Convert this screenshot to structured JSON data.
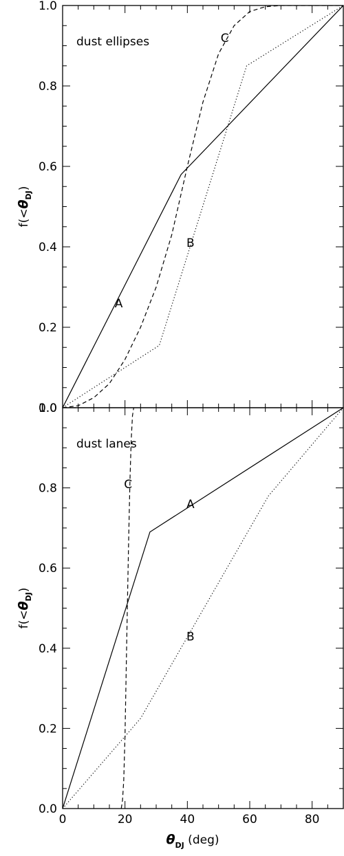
{
  "chart_data": [
    {
      "type": "line",
      "name": "top-panel",
      "panel_label": "dust ellipses",
      "xlim": [
        0,
        90
      ],
      "ylim": [
        0,
        1
      ],
      "xticks": [
        0,
        20,
        40,
        60,
        80
      ],
      "yticks": [
        0.0,
        0.2,
        0.4,
        0.6,
        0.8,
        1.0
      ],
      "ytick_labels": [
        "0.0",
        "0.2",
        "0.4",
        "0.6",
        "0.8",
        "1.0"
      ],
      "ylabel": {
        "prefix": "f(<",
        "symbol": "θ",
        "sub": "DJ",
        "suffix": ")"
      },
      "series": [
        {
          "name": "A",
          "style": "solid",
          "x": [
            0,
            38,
            90
          ],
          "y": [
            0,
            0.58,
            1.0
          ],
          "label_at": [
            18,
            0.26
          ]
        },
        {
          "name": "B",
          "style": "dotted",
          "x": [
            0,
            31,
            59,
            90
          ],
          "y": [
            0,
            0.155,
            0.85,
            1.0
          ],
          "label_at": [
            41,
            0.41
          ]
        },
        {
          "name": "C",
          "style": "dashed",
          "x": [
            0,
            5,
            10,
            15,
            20,
            25,
            30,
            35,
            40,
            45,
            50,
            55,
            60,
            65,
            70,
            75,
            80,
            90
          ],
          "y": [
            0,
            0.005,
            0.025,
            0.06,
            0.12,
            0.2,
            0.3,
            0.43,
            0.6,
            0.76,
            0.88,
            0.95,
            0.985,
            0.997,
            1.0,
            1.0,
            1.0,
            1.0
          ],
          "label_at": [
            52,
            0.92
          ]
        }
      ]
    },
    {
      "type": "line",
      "name": "bottom-panel",
      "panel_label": "dust lanes",
      "xlim": [
        0,
        90
      ],
      "ylim": [
        0,
        1
      ],
      "xticks": [
        0,
        20,
        40,
        60,
        80
      ],
      "xtick_labels": [
        "0",
        "20",
        "40",
        "60",
        "80"
      ],
      "yticks": [
        0.0,
        0.2,
        0.4,
        0.6,
        0.8,
        1.0
      ],
      "ytick_labels": [
        "0.0",
        "0.2",
        "0.4",
        "0.6",
        "0.8",
        "1.0"
      ],
      "ylabel": {
        "prefix": "f(<",
        "symbol": "θ",
        "sub": "DJ",
        "suffix": ")"
      },
      "xlabel": {
        "symbol": "θ",
        "sub": "DJ",
        "suffix": " (deg)"
      },
      "series": [
        {
          "name": "A",
          "style": "solid",
          "x": [
            0,
            28,
            90
          ],
          "y": [
            0,
            0.69,
            1.0
          ],
          "label_at": [
            41,
            0.76
          ]
        },
        {
          "name": "B",
          "style": "dotted",
          "x": [
            0,
            25,
            66,
            90
          ],
          "y": [
            0,
            0.225,
            0.78,
            1.0
          ],
          "label_at": [
            41,
            0.43
          ]
        },
        {
          "name": "C",
          "style": "dashed",
          "x": [
            18.8,
            19.2,
            19.6,
            20.0,
            20.4,
            20.8,
            21.2,
            21.6,
            22.0,
            22.4,
            22.8
          ],
          "y": [
            0.0,
            0.02,
            0.07,
            0.18,
            0.35,
            0.52,
            0.68,
            0.82,
            0.92,
            0.98,
            1.0
          ],
          "label_at": [
            21,
            0.81
          ]
        }
      ]
    }
  ]
}
